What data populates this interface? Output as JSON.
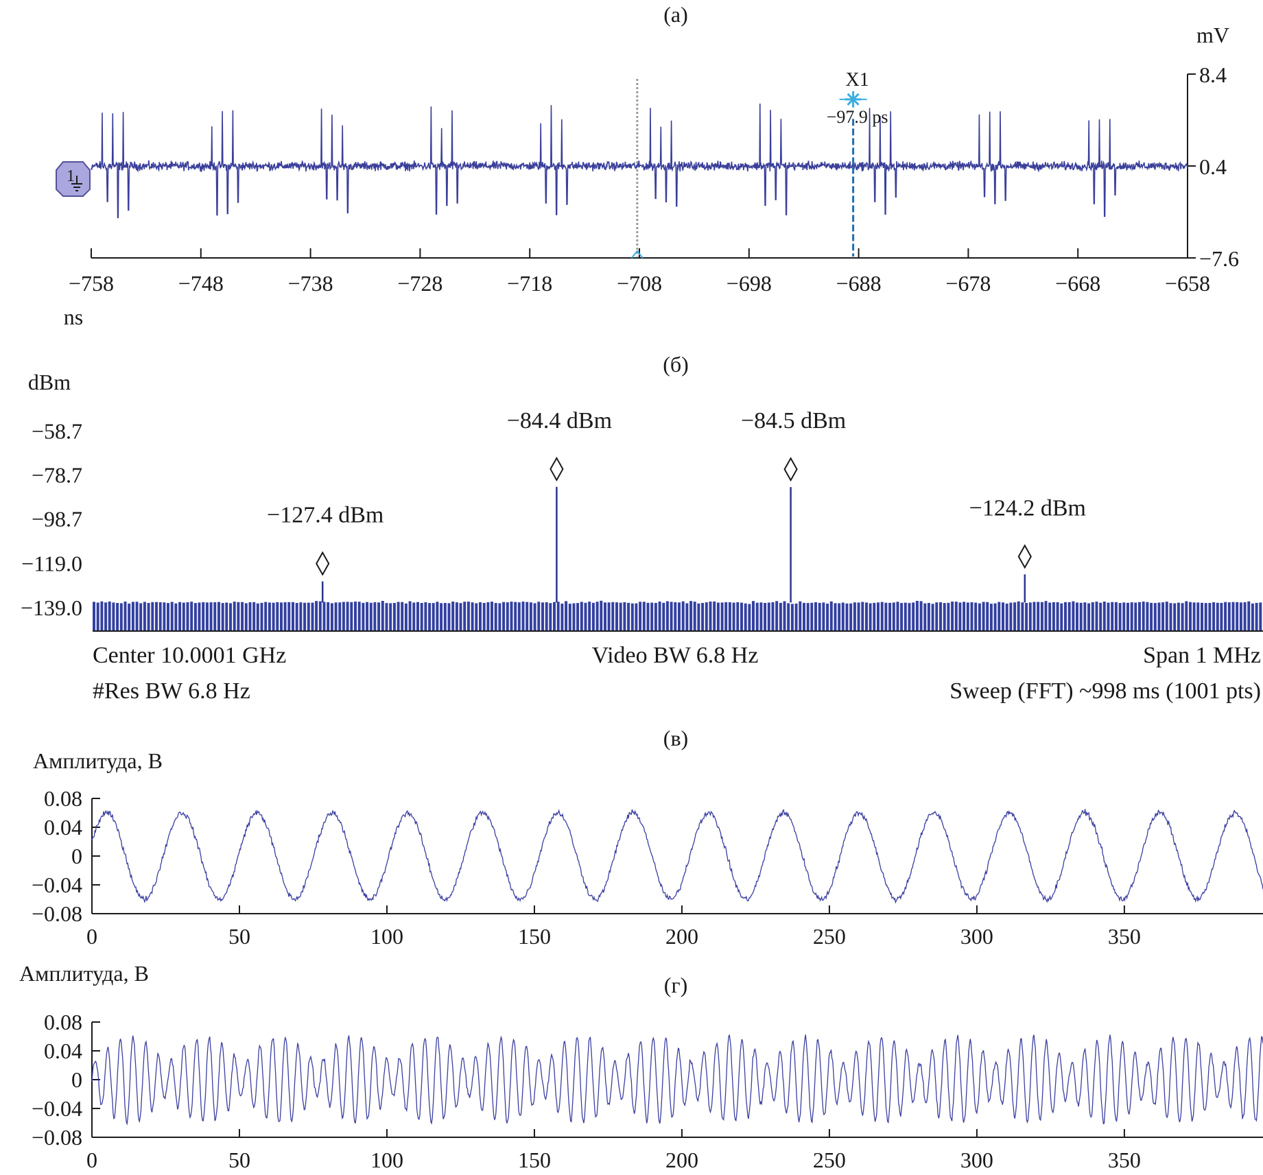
{
  "colors": {
    "trace": "#3a3f9a",
    "spectrum": "#2a3590",
    "marker_cyan": "#3aaee0",
    "channel_badge": "#a9a7dd",
    "dotted_cursor": "#9a9a9a"
  },
  "icons": [
    "channel-1-ground-badge-icon",
    "x1-star-marker-icon",
    "triangle-cursor-icon",
    "diamond-marker-icon"
  ],
  "chart_data": [
    {
      "panel_label": "(а)",
      "type": "line",
      "y_unit": "mV",
      "x_unit": "ns",
      "xlim": [
        -758,
        -658
      ],
      "ylim": [
        -7.6,
        8.4
      ],
      "x_ticks": [
        "−758",
        "−748",
        "−738",
        "−728",
        "−718",
        "−708",
        "−698",
        "−688",
        "−678",
        "−668",
        "−658"
      ],
      "y_ticks": [
        "8.4",
        "0.4",
        "−7.6"
      ],
      "channel_badge": "1",
      "baseline": 0.4,
      "pulse_period_ns": 10,
      "first_pulse_burst_ns": -757,
      "pulse_peak_mv": 5.5,
      "pulse_trough_mv": -4.5,
      "marker": {
        "name": "X1",
        "time": "−97.9 ps",
        "x": -688.5,
        "y": 6.2
      },
      "dotted_cursor_x": -708.2
    },
    {
      "panel_label": "(б)",
      "type": "bar",
      "y_unit": "dBm",
      "y_ticks": [
        "−58.7",
        "−78.7",
        "−98.7",
        "−119.0",
        "−139.0"
      ],
      "ylim": [
        -150,
        -52
      ],
      "noise_floor": -137,
      "points": 1001,
      "peaks": [
        {
          "label": "−127.4 dBm",
          "x": 0.2,
          "value": -127.4
        },
        {
          "label": "−84.4 dBm",
          "x": 0.4,
          "value": -84.4
        },
        {
          "label": "−84.5 dBm",
          "x": 0.6,
          "value": -84.5
        },
        {
          "label": "−124.2 dBm",
          "x": 0.8,
          "value": -124.2
        }
      ],
      "footer": {
        "center": "Center 10.0001 GHz",
        "video_bw": "Video BW 6.8 Hz",
        "span": "Span 1 MHz",
        "res_bw": "#Res BW 6.8 Hz",
        "sweep": "Sweep (FFT) ~998 ms (1001 pts)"
      }
    },
    {
      "panel_label": "(в)",
      "type": "line",
      "ylabel": "Амплитуда, В",
      "xlim": [
        0,
        397
      ],
      "ylim": [
        -0.08,
        0.08
      ],
      "x_ticks": [
        "0",
        "50",
        "100",
        "150",
        "200",
        "250",
        "300",
        "350"
      ],
      "y_ticks": [
        "0.08",
        "0.04",
        "0",
        "−0.04",
        "−0.08"
      ],
      "amplitude": 0.06,
      "period": 25.5,
      "phase_peak_at": 5
    },
    {
      "panel_label": "(г)",
      "type": "line",
      "ylabel": "Амплитуда, В",
      "xlim": [
        0,
        397
      ],
      "ylim": [
        -0.08,
        0.08
      ],
      "x_ticks": [
        "0",
        "50",
        "100",
        "150",
        "200",
        "250",
        "300",
        "350"
      ],
      "y_ticks": [
        "0.08",
        "0.04",
        "0",
        "−0.04",
        "−0.08"
      ],
      "amplitude": 0.06,
      "carrier_period": 4.3,
      "envelope_period": 25.5
    }
  ]
}
